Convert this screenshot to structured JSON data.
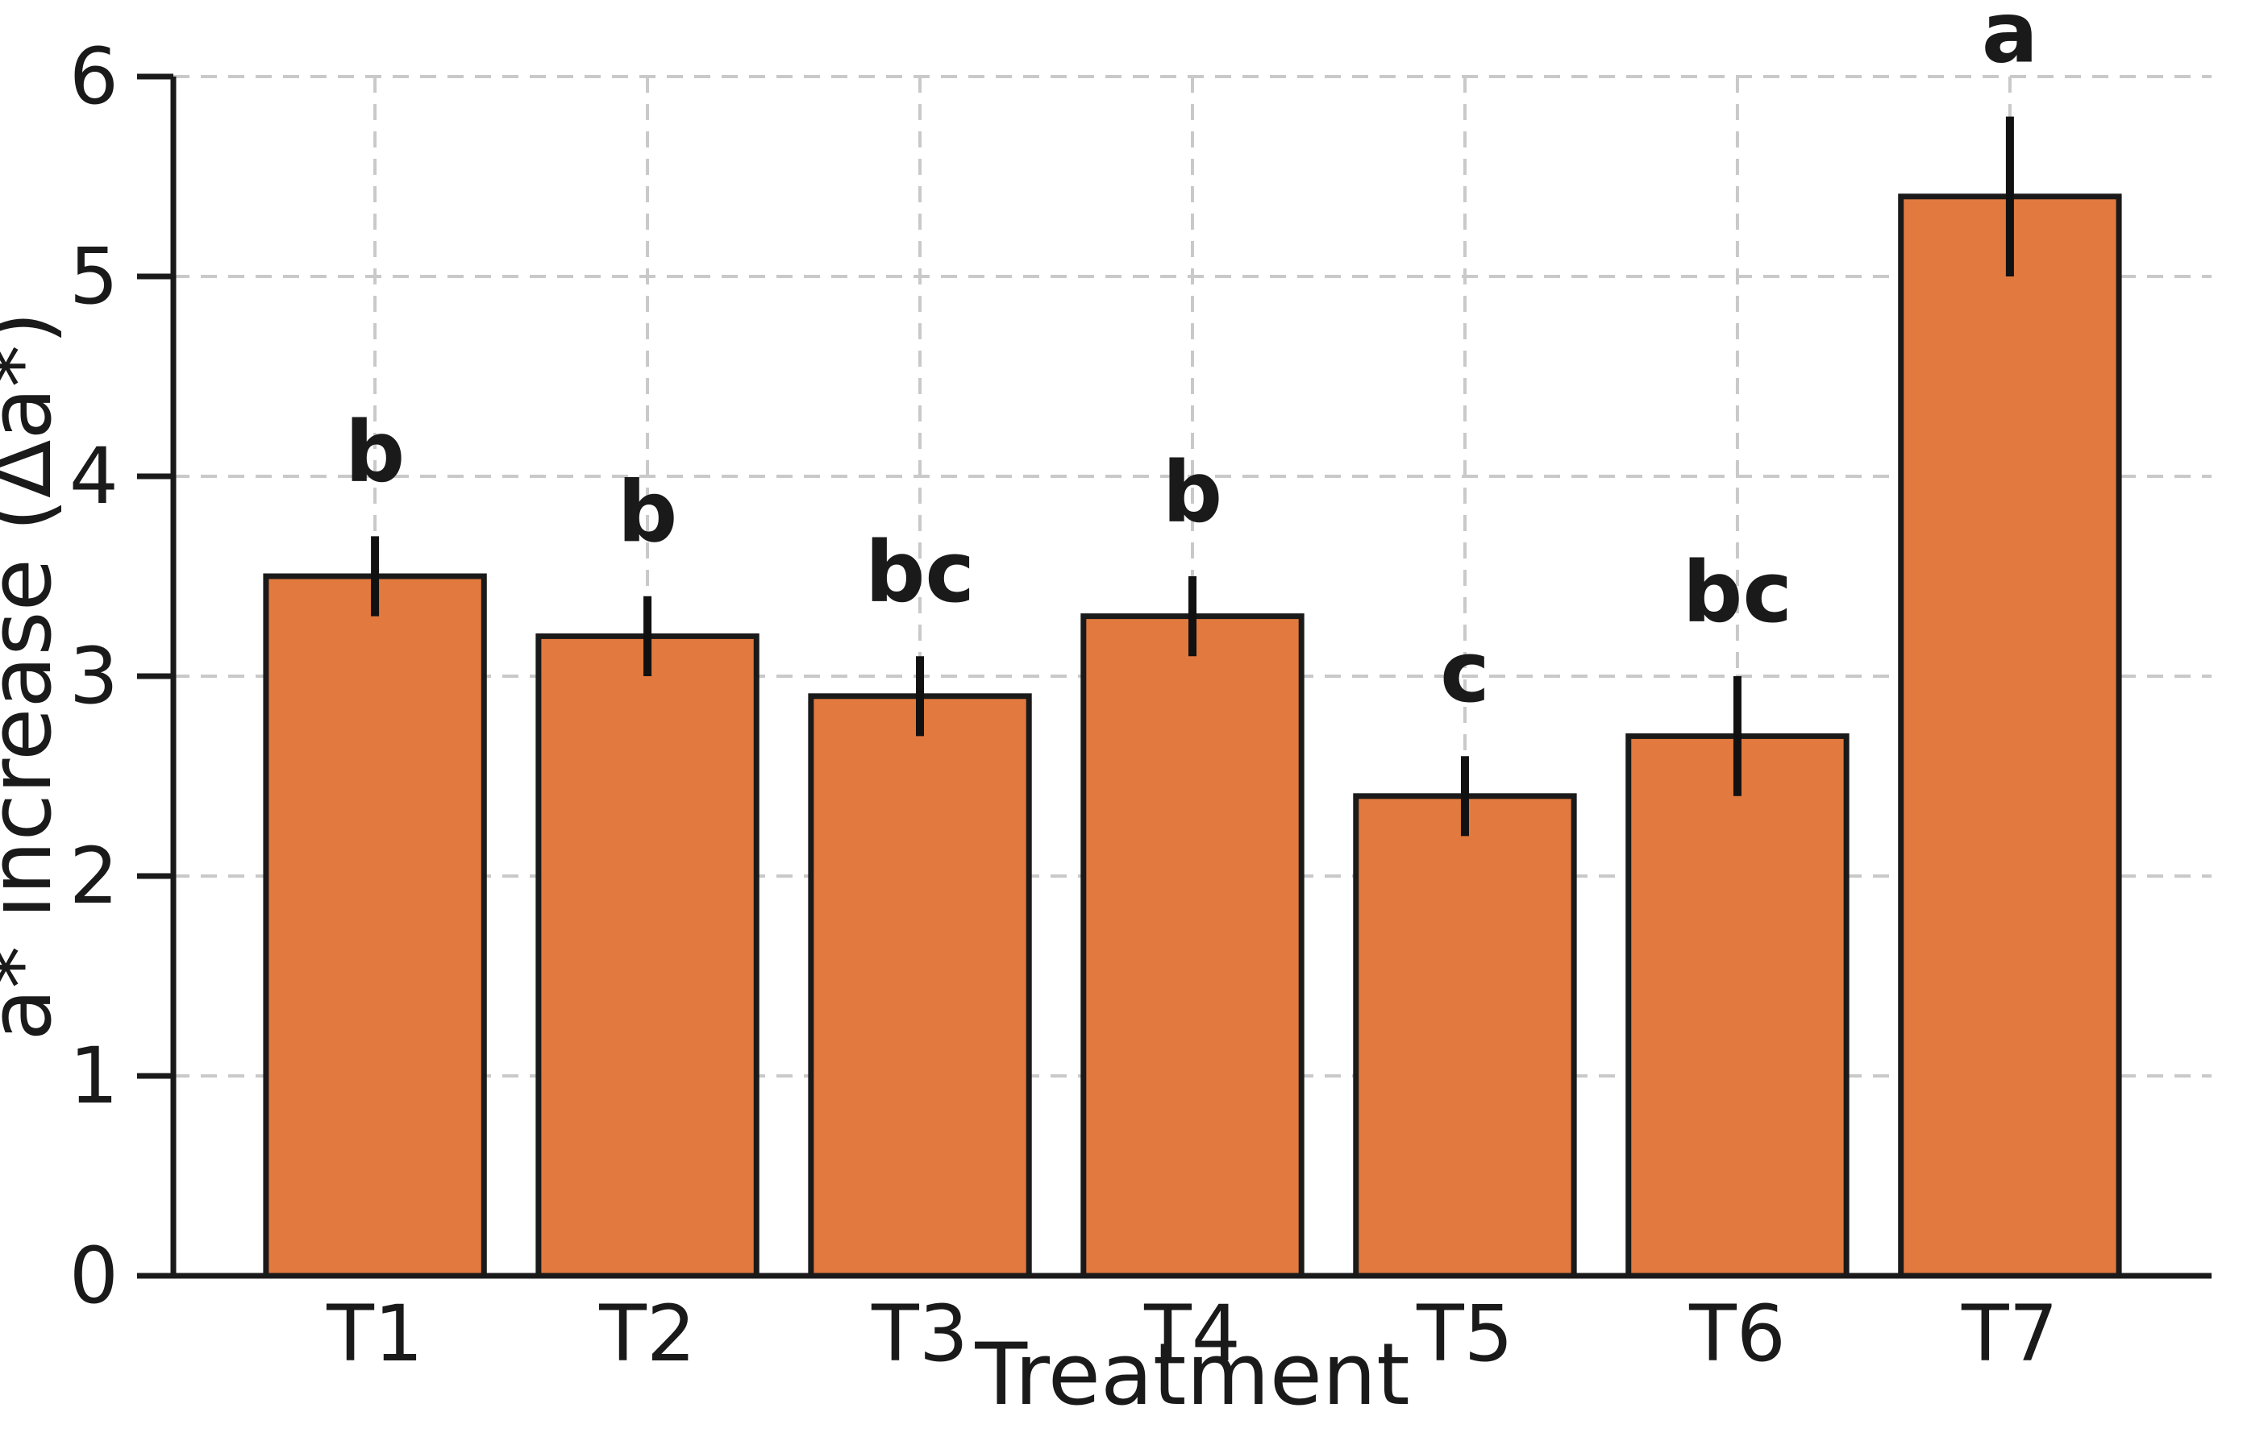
{
  "chart_data": {
    "type": "bar",
    "title": "",
    "xlabel": "Treatment",
    "ylabel": "a* increase (Δa*)",
    "categories": [
      "T1",
      "T2",
      "T3",
      "T4",
      "T5",
      "T6",
      "T7"
    ],
    "values": [
      3.5,
      3.2,
      2.9,
      3.3,
      2.4,
      2.7,
      5.4
    ],
    "errors": [
      0.2,
      0.2,
      0.2,
      0.2,
      0.2,
      0.3,
      0.4
    ],
    "sig_letters": [
      "b",
      "b",
      "bc",
      "b",
      "c",
      "bc",
      "a"
    ],
    "ylim": [
      0,
      6
    ],
    "yticks": [
      0,
      1,
      2,
      3,
      4,
      5,
      6
    ],
    "grid": "dashed, horizontal and vertical",
    "legend": "none",
    "colors": {
      "bar_fill": "#e2793e",
      "bar_edge": "#1a1a1a",
      "error_bar": "#111111",
      "grid_line": "#c9c9c9",
      "sig_letter": "#3a3a3a",
      "axis_text": "#1a1a1a",
      "background": "#ffffff"
    }
  }
}
